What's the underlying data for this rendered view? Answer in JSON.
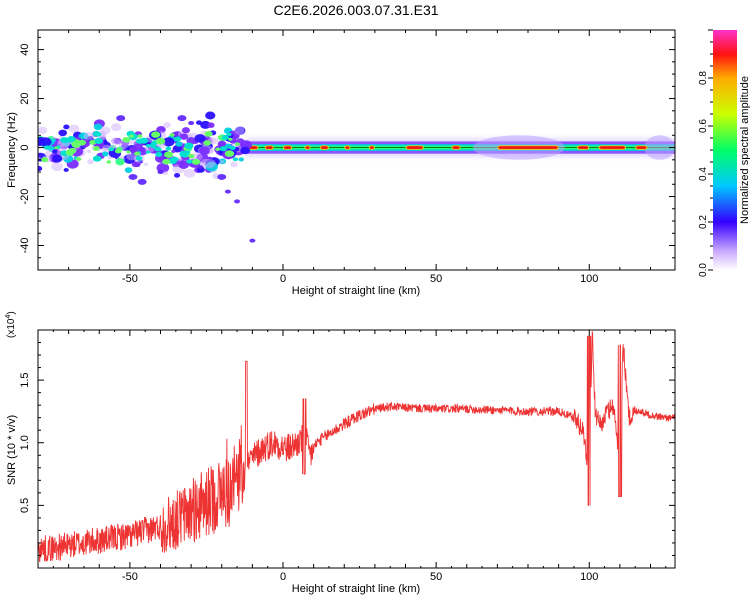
{
  "title": "C2E6.2026.003.07.31.E31",
  "colors": {
    "signal": "#ee3333",
    "axis": "#000000"
  },
  "chart_data": [
    {
      "type": "heatmap",
      "name": "spectrogram",
      "xlabel": "Height of straight line (km)",
      "ylabel": "Frequency (Hz)",
      "xlim": [
        -80,
        128
      ],
      "ylim": [
        -50,
        48
      ],
      "xticks": [
        -50,
        0,
        50,
        100
      ],
      "yticks": [
        -40,
        -20,
        0,
        20,
        40
      ],
      "colorbar": {
        "label": "Normalized spectral amplitude",
        "range": [
          0.0,
          1.0
        ],
        "ticks": [
          "0.0",
          "0.2",
          "0.4",
          "0.6",
          "0.8"
        ],
        "tick_values": [
          0.0,
          0.2,
          0.4,
          0.6,
          0.8
        ]
      }
    },
    {
      "type": "line",
      "name": "snr",
      "xlabel": "Height of straight line (km)",
      "ylabel": "SNR (10 * v/v)",
      "exponent_label": "(x10",
      "exponent": "4",
      "xlim": [
        -80,
        128
      ],
      "ylim": [
        0.0,
        1.9
      ],
      "xticks": [
        -50,
        0,
        50,
        100
      ],
      "yticks": [
        0.5,
        1.0,
        1.5
      ],
      "ytick_labels": [
        "0.5",
        "1.0",
        "1.5"
      ],
      "series": [
        {
          "name": "SNR",
          "x": [
            -80,
            -75,
            -70,
            -65,
            -60,
            -55,
            -50,
            -45,
            -40,
            -35,
            -30,
            -25,
            -20,
            -17,
            -15,
            -13,
            -11,
            -9,
            -7,
            -5,
            -3,
            -1,
            1,
            3,
            5,
            7,
            9,
            11,
            15,
            20,
            25,
            30,
            35,
            40,
            50,
            60,
            70,
            80,
            90,
            95,
            98,
            100,
            101,
            102,
            104,
            106,
            108,
            110,
            111,
            113,
            116,
            120,
            125,
            128
          ],
          "y": [
            0.15,
            0.16,
            0.18,
            0.2,
            0.22,
            0.24,
            0.26,
            0.3,
            0.33,
            0.38,
            0.45,
            0.52,
            0.6,
            0.62,
            0.7,
            0.8,
            0.85,
            0.9,
            0.95,
            0.98,
            1.0,
            0.98,
            0.95,
            0.97,
            1.0,
            1.05,
            0.9,
            1.0,
            1.07,
            1.15,
            1.22,
            1.27,
            1.29,
            1.28,
            1.27,
            1.27,
            1.26,
            1.25,
            1.25,
            1.2,
            1.1,
            0.7,
            1.9,
            1.2,
            1.15,
            1.25,
            1.3,
            0.8,
            1.8,
            1.2,
            1.26,
            1.22,
            1.2,
            1.2
          ]
        }
      ]
    }
  ]
}
